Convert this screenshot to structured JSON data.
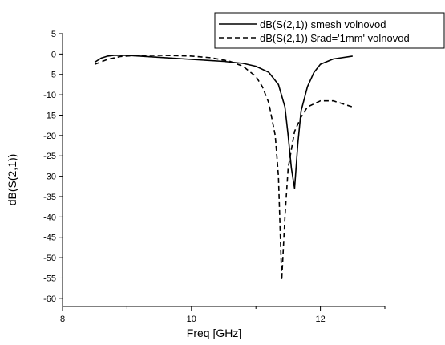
{
  "chart_data": {
    "type": "line",
    "xlabel": "Freq [GHz]",
    "ylabel": "dB(S(2,1))",
    "xlim": [
      8,
      13
    ],
    "ylim": [
      -62,
      5
    ],
    "xticks": [
      8,
      10,
      12
    ],
    "xtick_labels": [
      "8",
      "10",
      "12"
    ],
    "yticks": [
      5,
      0,
      -5,
      -10,
      -15,
      -20,
      -25,
      -30,
      -35,
      -40,
      -45,
      -50,
      -55,
      -60
    ],
    "ytick_labels": [
      "5",
      "0",
      "-5",
      "-10",
      "-15",
      "-20",
      "-25",
      "-30",
      "-35",
      "-40",
      "-45",
      "-50",
      "-55",
      "-60"
    ],
    "grid": false,
    "legend_position": "top-right",
    "series": [
      {
        "name": "dB(S(2,1)) smesh volnovod",
        "style": "solid",
        "color": "#000000",
        "x": [
          8.5,
          8.6,
          8.7,
          8.8,
          9.0,
          9.5,
          10.0,
          10.5,
          10.8,
          11.0,
          11.2,
          11.35,
          11.45,
          11.5,
          11.55,
          11.6,
          11.65,
          11.7,
          11.8,
          11.9,
          12.0,
          12.2,
          12.5
        ],
        "y": [
          -2.0,
          -1.0,
          -0.5,
          -0.3,
          -0.3,
          -0.8,
          -1.3,
          -1.8,
          -2.3,
          -3.0,
          -4.5,
          -7.5,
          -13.0,
          -20.0,
          -28.0,
          -33.0,
          -22.0,
          -14.0,
          -8.0,
          -4.5,
          -2.5,
          -1.2,
          -0.5
        ]
      },
      {
        "name": "dB(S(2,1)) $rad='1mm' volnovod",
        "style": "dashed",
        "color": "#000000",
        "x": [
          8.5,
          8.7,
          8.9,
          9.2,
          9.5,
          10.0,
          10.3,
          10.6,
          10.8,
          11.0,
          11.1,
          11.2,
          11.3,
          11.35,
          11.4,
          11.45,
          11.5,
          11.6,
          11.7,
          11.8,
          12.0,
          12.2,
          12.5
        ],
        "y": [
          -2.5,
          -1.3,
          -0.6,
          -0.3,
          -0.3,
          -0.5,
          -0.9,
          -1.8,
          -3.0,
          -5.5,
          -8.0,
          -12.0,
          -20.0,
          -30.0,
          -55.5,
          -40.0,
          -28.0,
          -19.0,
          -15.5,
          -13.0,
          -11.5,
          -11.5,
          -13.0
        ]
      }
    ]
  }
}
